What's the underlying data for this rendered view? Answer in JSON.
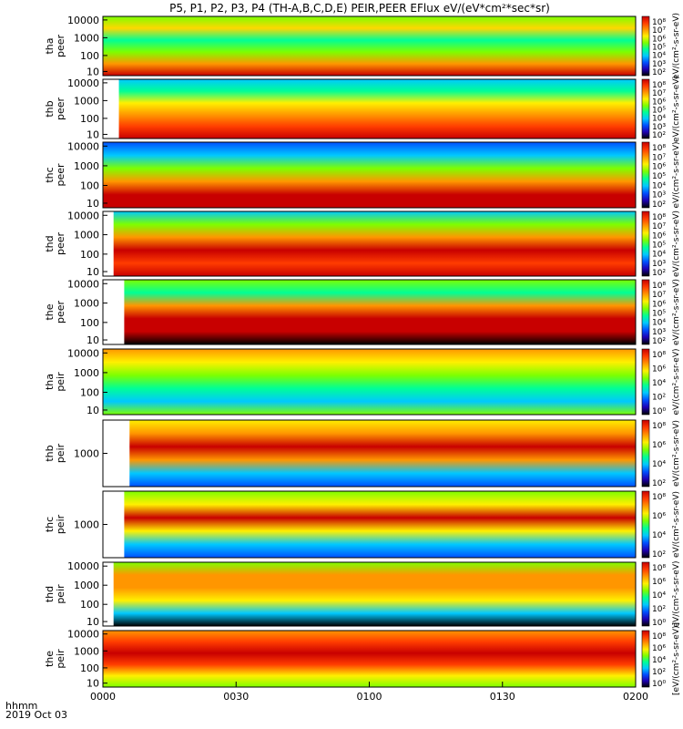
{
  "title": "P5, P1, P2, P3, P4 (TH-A,B,C,D,E) PEIR,PEER EFlux eV/(eV*cm²*sec*sr)",
  "footer": {
    "hhmm": "hhmm",
    "date": "2019 Oct 03"
  },
  "colors": {
    "colormap": [
      "#000000",
      "#1e00b4",
      "#0050ff",
      "#00c8ff",
      "#00ff96",
      "#7dff00",
      "#fff000",
      "#ff9600",
      "#ff3c00",
      "#c80000"
    ]
  },
  "chart_data": {
    "type": "heatmap",
    "x_ticks": [
      "0000",
      "0030",
      "0100",
      "0130",
      "0200"
    ],
    "x_range_minutes": [
      0,
      120
    ],
    "panels": [
      {
        "id": "tha-peer",
        "ylabel": [
          "tha",
          "peer"
        ],
        "yticks": [
          "10000",
          "1000",
          "100",
          "10"
        ],
        "ylim": [
          5,
          20000
        ],
        "cbar_labels": [
          "10⁸",
          "10⁷",
          "10⁶",
          "10⁵",
          "10⁴",
          "10³",
          "10²"
        ],
        "cbar_unit": "eV/(cm²-s-sr-eV)"
      },
      {
        "id": "thb-peer",
        "ylabel": [
          "thb",
          "peer"
        ],
        "yticks": [
          "10000",
          "1000",
          "100",
          "10"
        ],
        "ylim": [
          5,
          20000
        ],
        "cbar_labels": [
          "10⁸",
          "10⁷",
          "10⁶",
          "10⁵",
          "10⁴",
          "10³",
          "10²"
        ],
        "cbar_unit": "eV/(cm²-s-sr-eV)"
      },
      {
        "id": "thc-peer",
        "ylabel": [
          "thc",
          "peer"
        ],
        "yticks": [
          "10000",
          "1000",
          "100",
          "10"
        ],
        "ylim": [
          5,
          20000
        ],
        "cbar_labels": [
          "10⁸",
          "10⁷",
          "10⁶",
          "10⁵",
          "10⁴",
          "10³",
          "10²"
        ],
        "cbar_unit": "eV/(cm²-s-sr-eV)"
      },
      {
        "id": "thd-peer",
        "ylabel": [
          "thd",
          "peer"
        ],
        "yticks": [
          "10000",
          "1000",
          "100",
          "10"
        ],
        "ylim": [
          5,
          20000
        ],
        "cbar_labels": [
          "10⁸",
          "10⁷",
          "10⁶",
          "10⁵",
          "10⁴",
          "10³",
          "10²"
        ],
        "cbar_unit": "eV/(cm²-s-sr-eV)"
      },
      {
        "id": "the-peer",
        "ylabel": [
          "the",
          "peer"
        ],
        "yticks": [
          "10000",
          "1000",
          "100",
          "10"
        ],
        "ylim": [
          5,
          20000
        ],
        "cbar_labels": [
          "10⁸",
          "10⁷",
          "10⁶",
          "10⁵",
          "10⁴",
          "10³",
          "10²"
        ],
        "cbar_unit": "eV/(cm²-s-sr-eV)"
      },
      {
        "id": "tha-peir",
        "ylabel": [
          "tha",
          "peir"
        ],
        "yticks": [
          "10000",
          "1000",
          "100",
          "10"
        ],
        "ylim": [
          5,
          20000
        ],
        "cbar_labels": [
          "10⁸",
          "10⁶",
          "10⁴",
          "10²",
          "10⁰"
        ],
        "cbar_unit": "eV/(cm²-s-sr-eV)"
      },
      {
        "id": "thb-peir",
        "ylabel": [
          "thb",
          "peir"
        ],
        "yticks": [
          "1000"
        ],
        "ylim": [
          5,
          20000
        ],
        "cbar_labels": [
          "10⁸",
          "10⁶",
          "10⁴",
          "10²"
        ],
        "cbar_unit": "eV/(cm²-s-sr-eV)"
      },
      {
        "id": "thc-peir",
        "ylabel": [
          "thc",
          "peir"
        ],
        "yticks": [
          "1000"
        ],
        "ylim": [
          5,
          20000
        ],
        "cbar_labels": [
          "10⁸",
          "10⁶",
          "10⁴",
          "10²"
        ],
        "cbar_unit": "eV/(cm²-s-sr-eV)"
      },
      {
        "id": "thd-peir",
        "ylabel": [
          "thd",
          "peir"
        ],
        "yticks": [
          "10000",
          "1000",
          "100",
          "10"
        ],
        "ylim": [
          5,
          20000
        ],
        "cbar_labels": [
          "10⁸",
          "10⁶",
          "10⁴",
          "10²",
          "10⁰"
        ],
        "cbar_unit": "eV/(cm²-s-sr-eV)"
      },
      {
        "id": "the-peir",
        "ylabel": [
          "the",
          "peir"
        ],
        "yticks": [
          "10000",
          "1000",
          "100",
          "10"
        ],
        "ylim": [
          5,
          20000
        ],
        "cbar_labels": [
          "10⁸",
          "10⁶",
          "10⁴",
          "10²",
          "10⁰"
        ],
        "cbar_unit": "[eV/(cm²-s-sr-eV)]"
      }
    ]
  }
}
